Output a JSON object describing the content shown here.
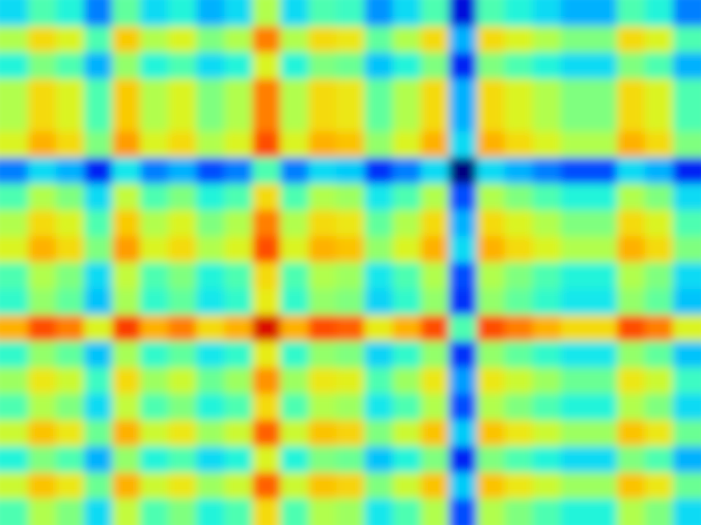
{
  "chart_data": {
    "type": "heatmap",
    "tick_labels": false,
    "zlim": [
      0,
      1
    ],
    "cells": [
      [
        0.35,
        0.45,
        0.4,
        0.25,
        0.47,
        0.35,
        0.4,
        0.3,
        0.35,
        0.55,
        0.35,
        0.45,
        0.43,
        0.27,
        0.35,
        0.45,
        0.1,
        0.45,
        0.4,
        0.35,
        0.3,
        0.3,
        0.45,
        0.4,
        0.25
      ],
      [
        0.55,
        0.65,
        0.6,
        0.45,
        0.67,
        0.55,
        0.6,
        0.5,
        0.55,
        0.75,
        0.55,
        0.65,
        0.63,
        0.47,
        0.55,
        0.65,
        0.3,
        0.65,
        0.6,
        0.55,
        0.5,
        0.5,
        0.65,
        0.6,
        0.45
      ],
      [
        0.4,
        0.5,
        0.45,
        0.3,
        0.52,
        0.4,
        0.45,
        0.35,
        0.4,
        0.6,
        0.4,
        0.5,
        0.48,
        0.32,
        0.4,
        0.5,
        0.15,
        0.5,
        0.45,
        0.4,
        0.35,
        0.35,
        0.5,
        0.45,
        0.3
      ],
      [
        0.55,
        0.65,
        0.6,
        0.45,
        0.67,
        0.55,
        0.6,
        0.5,
        0.55,
        0.75,
        0.55,
        0.65,
        0.63,
        0.47,
        0.55,
        0.65,
        0.3,
        0.65,
        0.6,
        0.55,
        0.5,
        0.5,
        0.65,
        0.6,
        0.45
      ],
      [
        0.55,
        0.65,
        0.6,
        0.45,
        0.67,
        0.55,
        0.6,
        0.5,
        0.55,
        0.75,
        0.55,
        0.65,
        0.63,
        0.47,
        0.55,
        0.65,
        0.3,
        0.65,
        0.6,
        0.55,
        0.5,
        0.5,
        0.65,
        0.6,
        0.45
      ],
      [
        0.6,
        0.7,
        0.65,
        0.5,
        0.72,
        0.6,
        0.65,
        0.55,
        0.6,
        0.8,
        0.6,
        0.7,
        0.68,
        0.52,
        0.6,
        0.7,
        0.35,
        0.7,
        0.65,
        0.6,
        0.55,
        0.55,
        0.7,
        0.65,
        0.5
      ],
      [
        0.25,
        0.35,
        0.3,
        0.15,
        0.37,
        0.25,
        0.3,
        0.2,
        0.25,
        0.45,
        0.25,
        0.35,
        0.33,
        0.17,
        0.25,
        0.35,
        0,
        0.35,
        0.3,
        0.25,
        0.2,
        0.2,
        0.35,
        0.3,
        0.15
      ],
      [
        0.45,
        0.55,
        0.5,
        0.35,
        0.57,
        0.45,
        0.5,
        0.4,
        0.45,
        0.65,
        0.45,
        0.55,
        0.53,
        0.37,
        0.45,
        0.55,
        0.2,
        0.55,
        0.5,
        0.45,
        0.4,
        0.4,
        0.55,
        0.5,
        0.35
      ],
      [
        0.55,
        0.65,
        0.6,
        0.45,
        0.67,
        0.55,
        0.6,
        0.5,
        0.55,
        0.75,
        0.55,
        0.65,
        0.63,
        0.47,
        0.55,
        0.65,
        0.3,
        0.65,
        0.6,
        0.55,
        0.5,
        0.5,
        0.65,
        0.6,
        0.45
      ],
      [
        0.6,
        0.7,
        0.65,
        0.5,
        0.72,
        0.6,
        0.65,
        0.55,
        0.6,
        0.8,
        0.6,
        0.7,
        0.68,
        0.52,
        0.6,
        0.7,
        0.35,
        0.7,
        0.65,
        0.6,
        0.55,
        0.55,
        0.7,
        0.65,
        0.5
      ],
      [
        0.45,
        0.55,
        0.5,
        0.35,
        0.57,
        0.45,
        0.5,
        0.4,
        0.45,
        0.65,
        0.45,
        0.55,
        0.53,
        0.37,
        0.45,
        0.55,
        0.2,
        0.55,
        0.5,
        0.45,
        0.4,
        0.4,
        0.55,
        0.5,
        0.35
      ],
      [
        0.42,
        0.52,
        0.47,
        0.32,
        0.54,
        0.42,
        0.47,
        0.37,
        0.42,
        0.62,
        0.42,
        0.52,
        0.5,
        0.34,
        0.42,
        0.52,
        0.17,
        0.52,
        0.47,
        0.42,
        0.37,
        0.37,
        0.52,
        0.47,
        0.32
      ],
      [
        0.7,
        0.8,
        0.75,
        0.6,
        0.82,
        0.7,
        0.75,
        0.65,
        0.7,
        0.9,
        0.7,
        0.8,
        0.78,
        0.62,
        0.7,
        0.8,
        0.45,
        0.8,
        0.75,
        0.7,
        0.65,
        0.65,
        0.8,
        0.75,
        0.6
      ],
      [
        0.42,
        0.52,
        0.47,
        0.32,
        0.54,
        0.42,
        0.47,
        0.37,
        0.42,
        0.62,
        0.42,
        0.52,
        0.5,
        0.34,
        0.42,
        0.52,
        0.17,
        0.52,
        0.47,
        0.42,
        0.37,
        0.37,
        0.52,
        0.47,
        0.32
      ],
      [
        0.53,
        0.63,
        0.58,
        0.43,
        0.65,
        0.53,
        0.58,
        0.48,
        0.53,
        0.73,
        0.53,
        0.63,
        0.61,
        0.45,
        0.53,
        0.63,
        0.28,
        0.63,
        0.58,
        0.53,
        0.48,
        0.48,
        0.63,
        0.58,
        0.43
      ],
      [
        0.45,
        0.55,
        0.5,
        0.35,
        0.57,
        0.45,
        0.5,
        0.4,
        0.45,
        0.65,
        0.45,
        0.55,
        0.53,
        0.37,
        0.45,
        0.55,
        0.2,
        0.55,
        0.5,
        0.45,
        0.4,
        0.4,
        0.55,
        0.5,
        0.35
      ],
      [
        0.58,
        0.68,
        0.63,
        0.48,
        0.7,
        0.58,
        0.63,
        0.53,
        0.58,
        0.78,
        0.58,
        0.68,
        0.66,
        0.5,
        0.58,
        0.68,
        0.33,
        0.68,
        0.63,
        0.58,
        0.53,
        0.53,
        0.68,
        0.63,
        0.48
      ],
      [
        0.4,
        0.5,
        0.45,
        0.3,
        0.52,
        0.4,
        0.45,
        0.35,
        0.4,
        0.6,
        0.4,
        0.5,
        0.48,
        0.32,
        0.4,
        0.5,
        0.15,
        0.5,
        0.45,
        0.4,
        0.35,
        0.35,
        0.5,
        0.45,
        0.3
      ],
      [
        0.58,
        0.68,
        0.63,
        0.48,
        0.7,
        0.58,
        0.63,
        0.53,
        0.58,
        0.78,
        0.58,
        0.68,
        0.66,
        0.5,
        0.58,
        0.68,
        0.33,
        0.68,
        0.63,
        0.58,
        0.53,
        0.53,
        0.68,
        0.63,
        0.48
      ],
      [
        0.45,
        0.55,
        0.5,
        0.35,
        0.57,
        0.45,
        0.5,
        0.4,
        0.45,
        0.65,
        0.45,
        0.55,
        0.53,
        0.37,
        0.45,
        0.55,
        0.2,
        0.55,
        0.5,
        0.45,
        0.4,
        0.4,
        0.55,
        0.5,
        0.35
      ]
    ]
  }
}
